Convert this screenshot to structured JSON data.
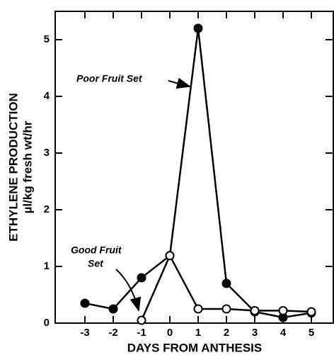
{
  "chart_data": {
    "type": "line",
    "xlabel": "DAYS FROM ANTHESIS",
    "ylabel": [
      "ETHYLENE PRODUCTION",
      "µl/kg fresh wt/hr"
    ],
    "x": [
      -3,
      -2,
      -1,
      0,
      1,
      2,
      3,
      4,
      5
    ],
    "series": [
      {
        "name": "Poor Fruit Set",
        "color": "#000000",
        "marker": "filled",
        "values": [
          0.35,
          0.25,
          0.8,
          1.19,
          5.2,
          0.7,
          0.2,
          0.1,
          0.18
        ]
      },
      {
        "name": "Good Fruit Set",
        "color": "#000000",
        "marker": "open",
        "values": [
          null,
          null,
          0.05,
          1.19,
          0.25,
          0.25,
          0.22,
          0.22,
          0.2
        ]
      }
    ],
    "annotations": [
      {
        "lines": [
          "Poor Fruit Set"
        ]
      },
      {
        "lines": [
          "Good Fruit",
          "Set"
        ]
      }
    ],
    "xlim": [
      -4.05,
      5.8
    ],
    "ylim": [
      0,
      5.5
    ],
    "xticks": [
      -3,
      -2,
      -1,
      0,
      1,
      2,
      3,
      4,
      5
    ],
    "yticks": [
      0,
      1,
      2,
      3,
      4,
      5
    ],
    "grid": false
  }
}
